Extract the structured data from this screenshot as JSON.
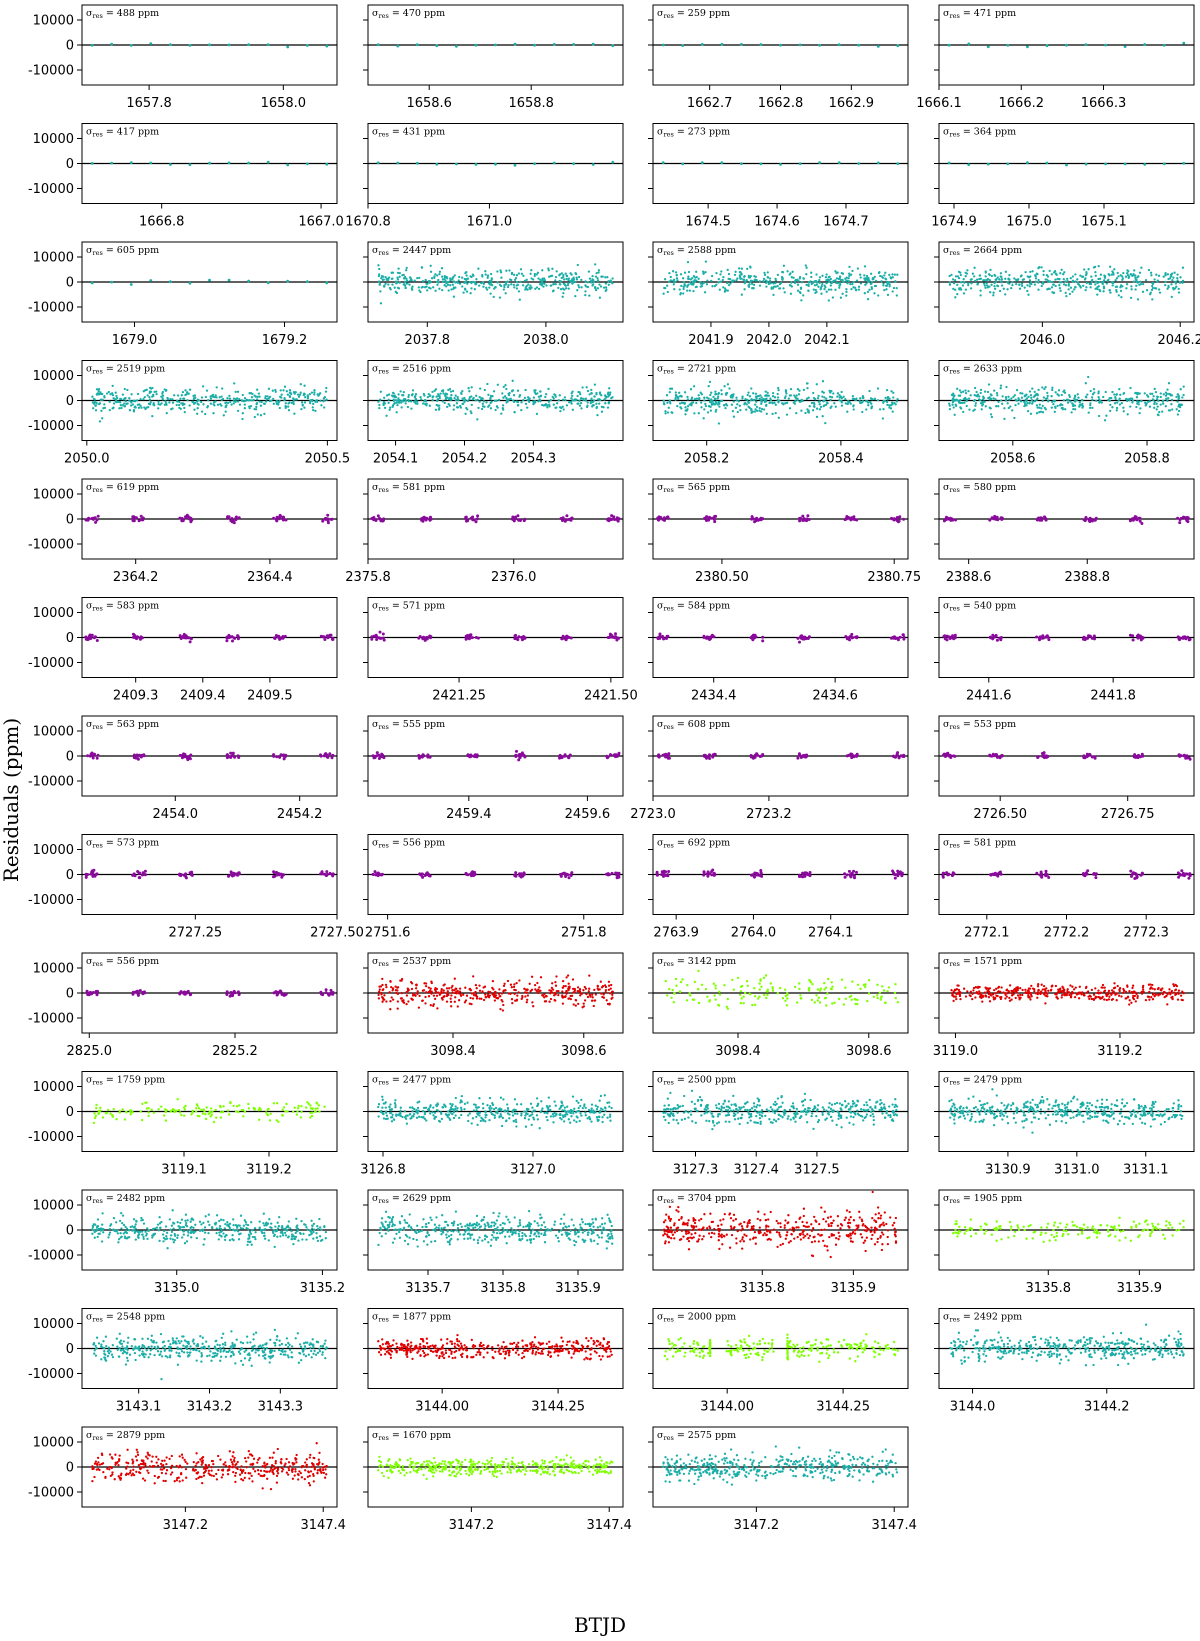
{
  "chart_data": {
    "type": "scatter",
    "xlabel": "BTJD",
    "ylabel": "Residuals (ppm)",
    "ylim": [
      -16000,
      16000
    ],
    "yticks": [
      10000,
      0,
      -10000
    ],
    "colors": {
      "teal": "#1aaea7",
      "purple": "#8a0a9c",
      "red": "#e00000",
      "green": "#7fff00",
      "zero_line": "#000000"
    },
    "panels": [
      {
        "sigma": 488,
        "color": "teal",
        "density": "sparse",
        "xlim": [
          1657.7,
          1658.08
        ],
        "xticks": [
          "1657.8",
          "1658.0"
        ]
      },
      {
        "sigma": 470,
        "color": "teal",
        "density": "sparse",
        "xlim": [
          1658.48,
          1658.98
        ],
        "xticks": [
          "1658.6",
          "1658.8"
        ]
      },
      {
        "sigma": 259,
        "color": "teal",
        "density": "sparse",
        "xlim": [
          1662.62,
          1662.98
        ],
        "xticks": [
          "1662.7",
          "1662.8",
          "1662.9"
        ]
      },
      {
        "sigma": 471,
        "color": "teal",
        "density": "sparse",
        "xlim": [
          1666.1,
          1666.41
        ],
        "xticks": [
          "1666.1",
          "1666.2",
          "1666.3"
        ]
      },
      {
        "sigma": 417,
        "color": "teal",
        "density": "sparse",
        "xlim": [
          1666.7,
          1667.02
        ],
        "xticks": [
          "1666.8",
          "1667.0"
        ]
      },
      {
        "sigma": 431,
        "color": "teal",
        "density": "sparse",
        "xlim": [
          1670.8,
          1671.22
        ],
        "xticks": [
          "1670.8",
          "1671.0"
        ]
      },
      {
        "sigma": 273,
        "color": "teal",
        "density": "sparse",
        "xlim": [
          1674.42,
          1674.79
        ],
        "xticks": [
          "1674.5",
          "1674.6",
          "1674.7"
        ]
      },
      {
        "sigma": 364,
        "color": "teal",
        "density": "sparse",
        "xlim": [
          1674.88,
          1675.22
        ],
        "xticks": [
          "1674.9",
          "1675.0",
          "1675.1"
        ]
      },
      {
        "sigma": 605,
        "color": "teal",
        "density": "sparse",
        "xlim": [
          1678.93,
          1679.27
        ],
        "xticks": [
          "1679.0",
          "1679.2"
        ]
      },
      {
        "sigma": 2447,
        "color": "teal",
        "density": "dense",
        "xlim": [
          1937.7,
          2038.13
        ],
        "xlim_fix": [
          2037.7,
          2038.13
        ],
        "xticks": [
          "2037.8",
          "2038.0"
        ]
      },
      {
        "sigma": 2588,
        "color": "teal",
        "density": "dense",
        "xlim": [
          2041.8,
          2042.24
        ],
        "xticks": [
          "2041.9",
          "2042.0",
          "2042.1"
        ]
      },
      {
        "sigma": 2664,
        "color": "teal",
        "density": "dense",
        "xlim": [
          2045.85,
          2046.22
        ],
        "xticks": [
          "2046.0",
          "2046.2"
        ]
      },
      {
        "sigma": 2519,
        "color": "teal",
        "density": "dense",
        "xlim": [
          2049.99,
          2050.52
        ],
        "xticks": [
          "2050.0",
          "2050.5"
        ]
      },
      {
        "sigma": 2516,
        "color": "teal",
        "density": "dense",
        "xlim": [
          2054.06,
          2054.43
        ],
        "xticks": [
          "2054.1",
          "2054.2",
          "2054.3"
        ]
      },
      {
        "sigma": 2721,
        "color": "teal",
        "density": "dense",
        "xlim": [
          2058.12,
          2058.5
        ],
        "xticks": [
          "2058.2",
          "2058.4"
        ]
      },
      {
        "sigma": 2633,
        "color": "teal",
        "density": "dense",
        "xlim": [
          2058.49,
          2058.87
        ],
        "xticks": [
          "2058.6",
          "2058.8"
        ]
      },
      {
        "sigma": 619,
        "color": "purple",
        "density": "clustered",
        "xlim": [
          2364.12,
          2364.5
        ],
        "xticks": [
          "2364.2",
          "2364.4"
        ]
      },
      {
        "sigma": 581,
        "color": "purple",
        "density": "clustered",
        "xlim": [
          2375.8,
          2376.15
        ],
        "xticks": [
          "2375.8",
          "2376.0"
        ]
      },
      {
        "sigma": 565,
        "color": "purple",
        "density": "clustered",
        "xlim": [
          2380.4,
          2380.77
        ],
        "xticks": [
          "2380.50",
          "2380.75"
        ]
      },
      {
        "sigma": 580,
        "color": "purple",
        "density": "clustered",
        "xlim": [
          2388.55,
          2388.98
        ],
        "xticks": [
          "2388.6",
          "2388.8"
        ]
      },
      {
        "sigma": 583,
        "color": "purple",
        "density": "clustered",
        "xlim": [
          2409.22,
          2409.6
        ],
        "xticks": [
          "2409.3",
          "2409.4",
          "2409.5"
        ]
      },
      {
        "sigma": 571,
        "color": "purple",
        "density": "clustered",
        "xlim": [
          2421.1,
          2421.52
        ],
        "xticks": [
          "2421.25",
          "2421.50"
        ]
      },
      {
        "sigma": 584,
        "color": "purple",
        "density": "clustered",
        "xlim": [
          2434.3,
          2434.72
        ],
        "xticks": [
          "2434.4",
          "2434.6"
        ]
      },
      {
        "sigma": 540,
        "color": "purple",
        "density": "clustered",
        "xlim": [
          2441.52,
          2441.93
        ],
        "xticks": [
          "2441.6",
          "2441.8"
        ]
      },
      {
        "sigma": 563,
        "color": "purple",
        "density": "clustered",
        "xlim": [
          2453.85,
          2454.26
        ],
        "xticks": [
          "2454.0",
          "2454.2"
        ]
      },
      {
        "sigma": 555,
        "color": "purple",
        "density": "clustered",
        "xlim": [
          2459.23,
          2459.66
        ],
        "xticks": [
          "2459.4",
          "2459.6"
        ]
      },
      {
        "sigma": 608,
        "color": "purple",
        "density": "clustered",
        "xlim": [
          2723.0,
          2723.44
        ],
        "xticks": [
          "2723.0",
          "2723.2"
        ]
      },
      {
        "sigma": 553,
        "color": "purple",
        "density": "clustered",
        "xlim": [
          2726.38,
          2726.88
        ],
        "xticks": [
          "2726.50",
          "2726.75"
        ]
      },
      {
        "sigma": 573,
        "color": "purple",
        "density": "clustered",
        "xlim": [
          2727.05,
          2727.5
        ],
        "xticks": [
          "2727.25",
          "2727.50"
        ]
      },
      {
        "sigma": 556,
        "color": "purple",
        "density": "clustered",
        "xlim": [
          2751.58,
          2751.84
        ],
        "xticks": [
          "2751.6",
          "2751.8"
        ]
      },
      {
        "sigma": 692,
        "color": "purple",
        "density": "clustered",
        "xlim": [
          2763.87,
          2764.2
        ],
        "xticks": [
          "2763.9",
          "2764.0",
          "2764.1"
        ]
      },
      {
        "sigma": 581,
        "color": "purple",
        "density": "clustered",
        "xlim": [
          2772.04,
          2772.36
        ],
        "xticks": [
          "2772.1",
          "2772.2",
          "2772.3"
        ]
      },
      {
        "sigma": 556,
        "color": "purple",
        "density": "clustered",
        "xlim": [
          2824.99,
          2825.34
        ],
        "xticks": [
          "2825.0",
          "2825.2"
        ]
      },
      {
        "sigma": 2537,
        "color": "red",
        "density": "dense",
        "xlim": [
          3098.27,
          3098.66
        ],
        "xticks": [
          "3098.4",
          "3098.6"
        ]
      },
      {
        "sigma": 3142,
        "color": "green",
        "density": "medium",
        "xlim": [
          3098.27,
          3098.66
        ],
        "xticks": [
          "3098.4",
          "3098.6"
        ]
      },
      {
        "sigma": 1571,
        "color": "red",
        "density": "dense",
        "xlim": [
          3118.98,
          3119.29
        ],
        "xticks": [
          "3119.0",
          "3119.2"
        ]
      },
      {
        "sigma": 1759,
        "color": "green",
        "density": "medium",
        "xlim": [
          3118.98,
          3119.28
        ],
        "xticks": [
          "3119.1",
          "3119.2"
        ]
      },
      {
        "sigma": 2477,
        "color": "teal",
        "density": "dense",
        "xlim": [
          3126.78,
          3127.12
        ],
        "xticks": [
          "3126.8",
          "3127.0"
        ]
      },
      {
        "sigma": 2500,
        "color": "teal",
        "density": "dense",
        "xlim": [
          3127.23,
          3127.65
        ],
        "xticks": [
          "3127.3",
          "3127.4",
          "3127.5"
        ]
      },
      {
        "sigma": 2479,
        "color": "teal",
        "density": "dense",
        "xlim": [
          3130.8,
          3131.17
        ],
        "xticks": [
          "3130.9",
          "3131.0",
          "3131.1"
        ]
      },
      {
        "sigma": 2482,
        "color": "teal",
        "density": "dense",
        "xlim": [
          3134.87,
          3135.22
        ],
        "xticks": [
          "3135.0",
          "3135.2"
        ]
      },
      {
        "sigma": 2629,
        "color": "teal",
        "density": "dense",
        "xlim": [
          3135.62,
          3135.96
        ],
        "xticks": [
          "3135.7",
          "3135.8",
          "3135.9"
        ]
      },
      {
        "sigma": 3704,
        "color": "red",
        "density": "dense",
        "xlim": [
          3135.68,
          3135.96
        ],
        "xticks": [
          "3135.8",
          "3135.9"
        ]
      },
      {
        "sigma": 1905,
        "color": "green",
        "density": "medium",
        "xlim": [
          3135.68,
          3135.96
        ],
        "xticks": [
          "3135.8",
          "3135.9"
        ]
      },
      {
        "sigma": 2548,
        "color": "teal",
        "density": "dense",
        "xlim": [
          3143.02,
          3143.38
        ],
        "xticks": [
          "3143.1",
          "3143.2",
          "3143.3"
        ]
      },
      {
        "sigma": 1877,
        "color": "red",
        "density": "dense",
        "xlim": [
          3143.84,
          3144.39
        ],
        "xticks": [
          "3144.00",
          "3144.25"
        ]
      },
      {
        "sigma": 2000,
        "color": "green",
        "density": "gapped",
        "xlim": [
          3143.84,
          3144.39
        ],
        "xticks": [
          "3144.00",
          "3144.25"
        ]
      },
      {
        "sigma": 2492,
        "color": "teal",
        "density": "dense",
        "xlim": [
          3143.95,
          3144.33
        ],
        "xticks": [
          "3144.0",
          "3144.2"
        ]
      },
      {
        "sigma": 2879,
        "color": "red",
        "density": "dense",
        "xlim": [
          3147.05,
          3147.42
        ],
        "xticks": [
          "3147.2",
          "3147.4"
        ]
      },
      {
        "sigma": 1670,
        "color": "green",
        "density": "dense",
        "xlim": [
          3147.05,
          3147.42
        ],
        "xticks": [
          "3147.2",
          "3147.4"
        ]
      },
      {
        "sigma": 2575,
        "color": "teal",
        "density": "dense",
        "xlim": [
          3147.05,
          3147.42
        ],
        "xticks": [
          "3147.2",
          "3147.4"
        ]
      }
    ]
  }
}
